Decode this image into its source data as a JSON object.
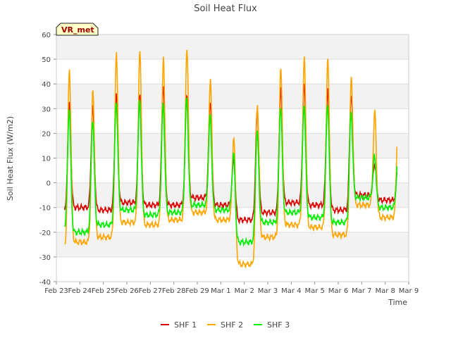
{
  "chart_data": {
    "type": "line",
    "title": "Soil Heat Flux",
    "xlabel": "Time",
    "ylabel": "Soil Heat Flux (W/m2)",
    "badge": "VR_met",
    "ylim": [
      -40,
      60
    ],
    "yticks": [
      -40,
      -30,
      -20,
      -10,
      0,
      10,
      20,
      30,
      40,
      50,
      60
    ],
    "xlim": [
      0,
      15
    ],
    "xticks": [
      {
        "x": 0,
        "label": "Feb 23"
      },
      {
        "x": 1,
        "label": "Feb 24"
      },
      {
        "x": 2,
        "label": "Feb 25"
      },
      {
        "x": 3,
        "label": "Feb 26"
      },
      {
        "x": 4,
        "label": "Feb 27"
      },
      {
        "x": 5,
        "label": "Feb 28"
      },
      {
        "x": 6,
        "label": "Feb 29"
      },
      {
        "x": 7,
        "label": "Mar 1"
      },
      {
        "x": 8,
        "label": "Mar 2"
      },
      {
        "x": 9,
        "label": "Mar 3"
      },
      {
        "x": 10,
        "label": "Mar 4"
      },
      {
        "x": 11,
        "label": "Mar 5"
      },
      {
        "x": 12,
        "label": "Mar 6"
      },
      {
        "x": 13,
        "label": "Mar 7"
      },
      {
        "x": 14,
        "label": "Mar 8"
      },
      {
        "x": 15,
        "label": "Mar 9"
      }
    ],
    "x_range_days": [
      0.35,
      14.5
    ],
    "days": [
      0,
      1,
      2,
      3,
      4,
      5,
      6,
      7,
      8,
      9,
      10,
      11,
      12,
      13,
      14
    ],
    "series": [
      {
        "name": "SHF 1",
        "color": "#dd0000",
        "peaks": [
          32,
          31,
          36,
          36,
          40,
          36,
          33,
          10,
          29,
          38,
          40,
          38,
          36,
          8
        ],
        "nights": [
          -12,
          -10,
          -11,
          -8,
          -9,
          -9,
          -6,
          -9,
          -15,
          -12,
          -8,
          -9,
          -11,
          -5,
          -7
        ]
      },
      {
        "name": "SHF 2",
        "color": "#ffa500",
        "peaks": [
          46,
          38,
          52,
          53,
          50,
          54,
          42,
          19,
          32,
          47,
          51,
          50,
          42,
          29
        ],
        "nights": [
          -26,
          -24,
          -22,
          -16,
          -17,
          -15,
          -12,
          -15,
          -33,
          -22,
          -17,
          -18,
          -21,
          -9,
          -14
        ]
      },
      {
        "name": "SHF 3",
        "color": "#00ee00",
        "peaks": [
          30,
          26,
          33,
          34,
          32,
          34,
          27,
          12,
          21,
          31,
          32,
          32,
          29,
          11
        ],
        "nights": [
          -18,
          -20,
          -17,
          -11,
          -13,
          -12,
          -9,
          -11,
          -24,
          -16,
          -12,
          -14,
          -16,
          -6,
          -10
        ]
      }
    ]
  }
}
